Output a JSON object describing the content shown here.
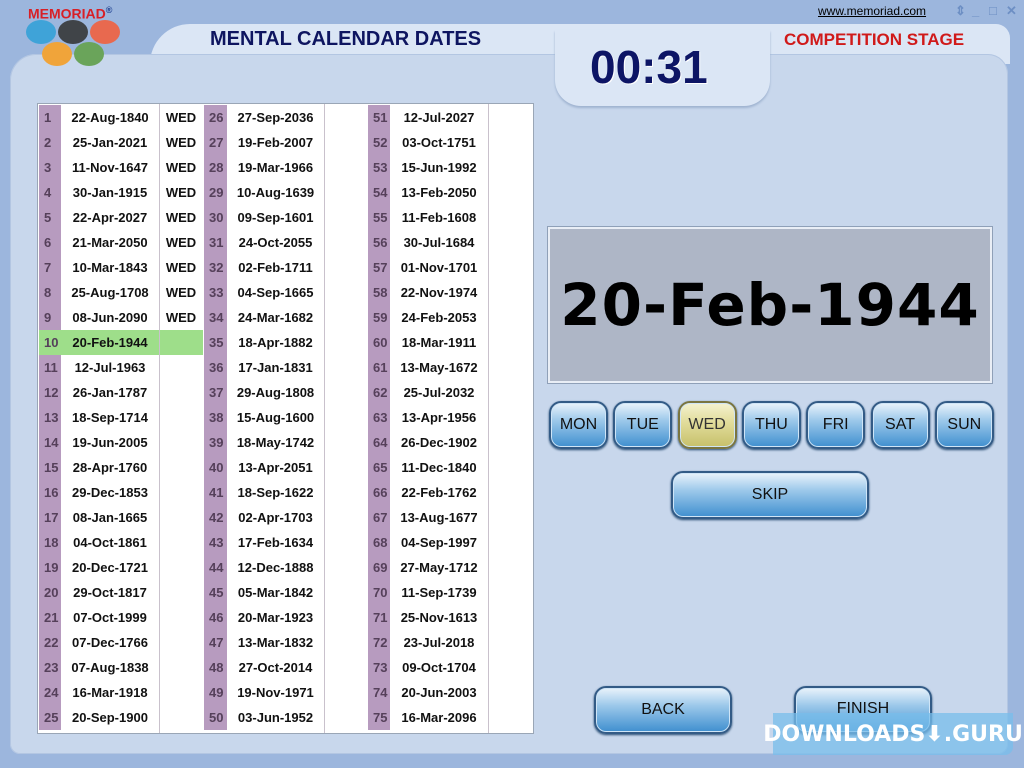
{
  "app": {
    "logo": "MEMORIAD",
    "reg": "®",
    "website": "www.memoriad.com",
    "title": "MENTAL CALENDAR DATES",
    "timer": "00:31",
    "stage": "COMPETITION STAGE"
  },
  "window_controls": {
    "resize": "⇕",
    "minimize": "_",
    "maximize": "□",
    "close": "✕"
  },
  "current_date": "20-Feb-1944",
  "current_index": 10,
  "colors": {
    "number_cell": "#b79bbf",
    "current_row": "#9ede8a",
    "selected_day": "#e1dc9a",
    "button": "#5fa3d9"
  },
  "rows": [
    {
      "n": "1",
      "date": "22-Aug-1840",
      "answer": "WED"
    },
    {
      "n": "2",
      "date": "25-Jan-2021",
      "answer": "WED"
    },
    {
      "n": "3",
      "date": "11-Nov-1647",
      "answer": "WED"
    },
    {
      "n": "4",
      "date": "30-Jan-1915",
      "answer": "WED"
    },
    {
      "n": "5",
      "date": "22-Apr-2027",
      "answer": "WED"
    },
    {
      "n": "6",
      "date": "21-Mar-2050",
      "answer": "WED"
    },
    {
      "n": "7",
      "date": "10-Mar-1843",
      "answer": "WED"
    },
    {
      "n": "8",
      "date": "25-Aug-1708",
      "answer": "WED"
    },
    {
      "n": "9",
      "date": "08-Jun-2090",
      "answer": "WED"
    },
    {
      "n": "10",
      "date": "20-Feb-1944",
      "answer": ""
    },
    {
      "n": "11",
      "date": "12-Jul-1963",
      "answer": ""
    },
    {
      "n": "12",
      "date": "26-Jan-1787",
      "answer": ""
    },
    {
      "n": "13",
      "date": "18-Sep-1714",
      "answer": ""
    },
    {
      "n": "14",
      "date": "19-Jun-2005",
      "answer": ""
    },
    {
      "n": "15",
      "date": "28-Apr-1760",
      "answer": ""
    },
    {
      "n": "16",
      "date": "29-Dec-1853",
      "answer": ""
    },
    {
      "n": "17",
      "date": "08-Jan-1665",
      "answer": ""
    },
    {
      "n": "18",
      "date": "04-Oct-1861",
      "answer": ""
    },
    {
      "n": "19",
      "date": "20-Dec-1721",
      "answer": ""
    },
    {
      "n": "20",
      "date": "29-Oct-1817",
      "answer": ""
    },
    {
      "n": "21",
      "date": "07-Oct-1999",
      "answer": ""
    },
    {
      "n": "22",
      "date": "07-Dec-1766",
      "answer": ""
    },
    {
      "n": "23",
      "date": "07-Aug-1838",
      "answer": ""
    },
    {
      "n": "24",
      "date": "16-Mar-1918",
      "answer": ""
    },
    {
      "n": "25",
      "date": "20-Sep-1900",
      "answer": ""
    },
    {
      "n": "26",
      "date": "27-Sep-2036",
      "answer": ""
    },
    {
      "n": "27",
      "date": "19-Feb-2007",
      "answer": ""
    },
    {
      "n": "28",
      "date": "19-Mar-1966",
      "answer": ""
    },
    {
      "n": "29",
      "date": "10-Aug-1639",
      "answer": ""
    },
    {
      "n": "30",
      "date": "09-Sep-1601",
      "answer": ""
    },
    {
      "n": "31",
      "date": "24-Oct-2055",
      "answer": ""
    },
    {
      "n": "32",
      "date": "02-Feb-1711",
      "answer": ""
    },
    {
      "n": "33",
      "date": "04-Sep-1665",
      "answer": ""
    },
    {
      "n": "34",
      "date": "24-Mar-1682",
      "answer": ""
    },
    {
      "n": "35",
      "date": "18-Apr-1882",
      "answer": ""
    },
    {
      "n": "36",
      "date": "17-Jan-1831",
      "answer": ""
    },
    {
      "n": "37",
      "date": "29-Aug-1808",
      "answer": ""
    },
    {
      "n": "38",
      "date": "15-Aug-1600",
      "answer": ""
    },
    {
      "n": "39",
      "date": "18-May-1742",
      "answer": ""
    },
    {
      "n": "40",
      "date": "13-Apr-2051",
      "answer": ""
    },
    {
      "n": "41",
      "date": "18-Sep-1622",
      "answer": ""
    },
    {
      "n": "42",
      "date": "02-Apr-1703",
      "answer": ""
    },
    {
      "n": "43",
      "date": "17-Feb-1634",
      "answer": ""
    },
    {
      "n": "44",
      "date": "12-Dec-1888",
      "answer": ""
    },
    {
      "n": "45",
      "date": "05-Mar-1842",
      "answer": ""
    },
    {
      "n": "46",
      "date": "20-Mar-1923",
      "answer": ""
    },
    {
      "n": "47",
      "date": "13-Mar-1832",
      "answer": ""
    },
    {
      "n": "48",
      "date": "27-Oct-2014",
      "answer": ""
    },
    {
      "n": "49",
      "date": "19-Nov-1971",
      "answer": ""
    },
    {
      "n": "50",
      "date": "03-Jun-1952",
      "answer": ""
    },
    {
      "n": "51",
      "date": "12-Jul-2027",
      "answer": ""
    },
    {
      "n": "52",
      "date": "03-Oct-1751",
      "answer": ""
    },
    {
      "n": "53",
      "date": "15-Jun-1992",
      "answer": ""
    },
    {
      "n": "54",
      "date": "13-Feb-2050",
      "answer": ""
    },
    {
      "n": "55",
      "date": "11-Feb-1608",
      "answer": ""
    },
    {
      "n": "56",
      "date": "30-Jul-1684",
      "answer": ""
    },
    {
      "n": "57",
      "date": "01-Nov-1701",
      "answer": ""
    },
    {
      "n": "58",
      "date": "22-Nov-1974",
      "answer": ""
    },
    {
      "n": "59",
      "date": "24-Feb-2053",
      "answer": ""
    },
    {
      "n": "60",
      "date": "18-Mar-1911",
      "answer": ""
    },
    {
      "n": "61",
      "date": "13-May-1672",
      "answer": ""
    },
    {
      "n": "62",
      "date": "25-Jul-2032",
      "answer": ""
    },
    {
      "n": "63",
      "date": "13-Apr-1956",
      "answer": ""
    },
    {
      "n": "64",
      "date": "26-Dec-1902",
      "answer": ""
    },
    {
      "n": "65",
      "date": "11-Dec-1840",
      "answer": ""
    },
    {
      "n": "66",
      "date": "22-Feb-1762",
      "answer": ""
    },
    {
      "n": "67",
      "date": "13-Aug-1677",
      "answer": ""
    },
    {
      "n": "68",
      "date": "04-Sep-1997",
      "answer": ""
    },
    {
      "n": "69",
      "date": "27-May-1712",
      "answer": ""
    },
    {
      "n": "70",
      "date": "11-Sep-1739",
      "answer": ""
    },
    {
      "n": "71",
      "date": "25-Nov-1613",
      "answer": ""
    },
    {
      "n": "72",
      "date": "23-Jul-2018",
      "answer": ""
    },
    {
      "n": "73",
      "date": "09-Oct-1704",
      "answer": ""
    },
    {
      "n": "74",
      "date": "20-Jun-2003",
      "answer": ""
    },
    {
      "n": "75",
      "date": "16-Mar-2096",
      "answer": ""
    }
  ],
  "days": [
    "MON",
    "TUE",
    "WED",
    "THU",
    "FRI",
    "SAT",
    "SUN"
  ],
  "selected_day": "WED",
  "buttons": {
    "skip": "SKIP",
    "back": "BACK",
    "finish": "FINISH"
  },
  "watermark": "DOWNLOADS⬇.GURU"
}
